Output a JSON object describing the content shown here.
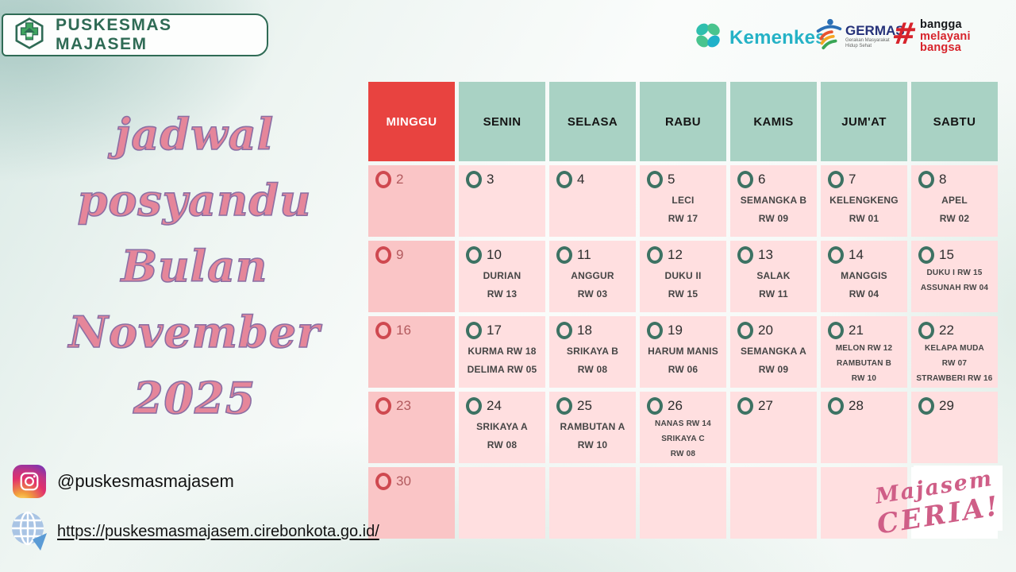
{
  "banner": {
    "clinic_name": "PUSKESMAS MAJASEM"
  },
  "logos": {
    "kemenkes_label": "Kemenkes",
    "germas_label": "GERMAS",
    "germas_sublabel": "Gerakan Masyarakat Hidup Sehat",
    "bangga_hash": "#",
    "bangga_lines": [
      "bangga",
      "melayani",
      "bangsa"
    ]
  },
  "title": {
    "lines": [
      "jadwal",
      "posyandu",
      "Bulan",
      "November",
      "2025"
    ]
  },
  "calendar": {
    "day_headers": [
      "MINGGU",
      "SENIN",
      "SELASA",
      "RABU",
      "KAMIS",
      "JUM'AT",
      "SABTU"
    ],
    "weeks": [
      [
        {
          "day": "2",
          "sunday": true
        },
        {
          "day": "3"
        },
        {
          "day": "4"
        },
        {
          "day": "5",
          "events": [
            "LECI",
            "RW 17"
          ]
        },
        {
          "day": "6",
          "events": [
            "SEMANGKA B",
            "RW 09"
          ]
        },
        {
          "day": "7",
          "events": [
            "KELENGKENG",
            "RW 01"
          ]
        },
        {
          "day": "8",
          "events": [
            "APEL",
            "RW 02"
          ]
        }
      ],
      [
        {
          "day": "9",
          "sunday": true
        },
        {
          "day": "10",
          "events": [
            "DURIAN",
            "RW 13"
          ]
        },
        {
          "day": "11",
          "events": [
            "ANGGUR",
            "RW 03"
          ]
        },
        {
          "day": "12",
          "events": [
            "DUKU II",
            "RW 15"
          ]
        },
        {
          "day": "13",
          "events": [
            "SALAK",
            "RW 11"
          ]
        },
        {
          "day": "14",
          "events": [
            "MANGGIS",
            "RW 04"
          ]
        },
        {
          "day": "15",
          "events": [
            "DUKU I RW 15",
            "ASSUNAH RW 04"
          ],
          "small": true
        }
      ],
      [
        {
          "day": "16",
          "sunday": true
        },
        {
          "day": "17",
          "events": [
            "KURMA RW 18",
            "DELIMA RW 05"
          ]
        },
        {
          "day": "18",
          "events": [
            "SRIKAYA B",
            "RW 08"
          ]
        },
        {
          "day": "19",
          "events": [
            "HARUM MANIS",
            "RW 06"
          ]
        },
        {
          "day": "20",
          "events": [
            "SEMANGKA A",
            "RW 09"
          ]
        },
        {
          "day": "21",
          "events": [
            "MELON RW 12",
            "RAMBUTAN B",
            "RW 10"
          ],
          "small": true
        },
        {
          "day": "22",
          "events": [
            "KELAPA MUDA",
            "RW 07",
            "STRAWBERI RW 16"
          ],
          "small": true
        }
      ],
      [
        {
          "day": "23",
          "sunday": true
        },
        {
          "day": "24",
          "events": [
            "SRIKAYA A",
            "RW 08"
          ]
        },
        {
          "day": "25",
          "events": [
            "RAMBUTAN A",
            "RW 10"
          ]
        },
        {
          "day": "26",
          "events": [
            "NANAS RW 14",
            "SRIKAYA C",
            "RW 08"
          ],
          "small": true
        },
        {
          "day": "27"
        },
        {
          "day": "28"
        },
        {
          "day": "29"
        }
      ],
      [
        {
          "day": "30",
          "sunday": true
        },
        {},
        {},
        {},
        {},
        {},
        {
          "white": true
        }
      ]
    ]
  },
  "watermark": {
    "line1": "Majasem",
    "line2": "CERIA!"
  },
  "footer": {
    "instagram_handle": "@puskesmasmajasem",
    "website_url": "https://puskesmasmajasem.cirebonkota.go.id/"
  },
  "colors": {
    "header_teal": "#a9d2c4",
    "sunday_red": "#e84340",
    "sunday_cell_pink": "#fac5c6",
    "weekday_cell_pink": "#ffdfe0",
    "ring_green": "#3d7263",
    "ring_red": "#cf4950",
    "title_pink": "#e5869a",
    "title_outline": "#8b6fa4",
    "banner_green": "#2f6b55",
    "kemenkes_teal": "#25b2c6",
    "germas_navy": "#26327a",
    "bangga_red": "#d7232b",
    "watermark_pink": "#cf5e87"
  }
}
